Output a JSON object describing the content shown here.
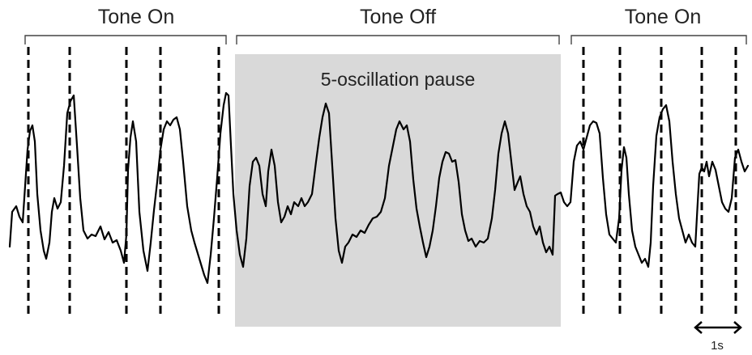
{
  "segments": [
    {
      "label": "Tone On"
    },
    {
      "label": "Tone Off"
    },
    {
      "label": "Tone On"
    }
  ],
  "pause_label": "5-oscillation pause",
  "scale_bar": {
    "label": "1s"
  },
  "colors": {
    "trace": "#000000",
    "pause_region": "#d9d9d9",
    "bracket": "#444444",
    "marker": "#000000"
  }
}
